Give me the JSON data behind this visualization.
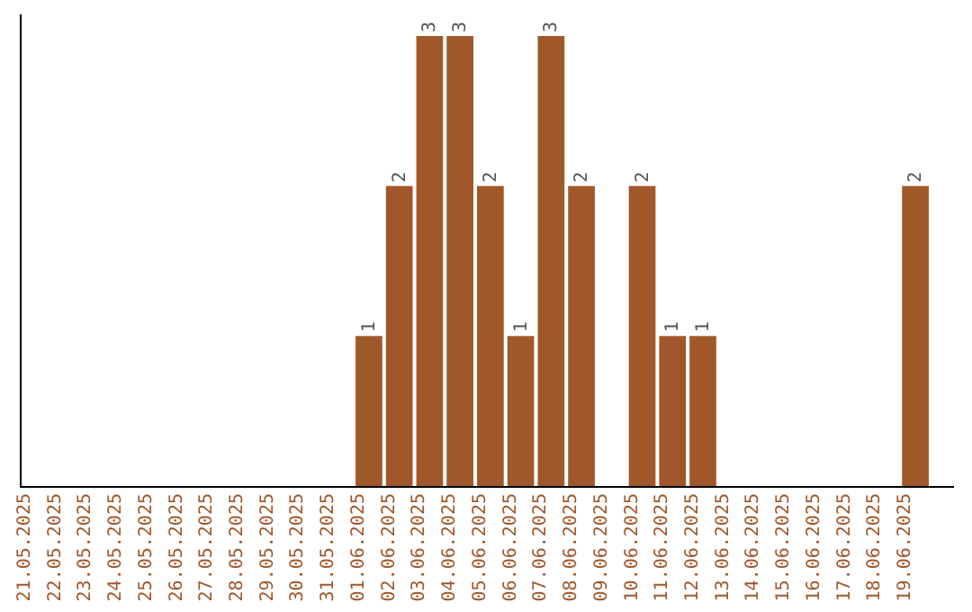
{
  "chart_data": {
    "type": "bar",
    "categories": [
      "21.05.2025",
      "22.05.2025",
      "23.05.2025",
      "24.05.2025",
      "25.05.2025",
      "26.05.2025",
      "27.05.2025",
      "28.05.2025",
      "29.05.2025",
      "30.05.2025",
      "31.05.2025",
      "01.06.2025",
      "02.06.2025",
      "03.06.2025",
      "04.06.2025",
      "05.06.2025",
      "06.06.2025",
      "07.06.2025",
      "08.06.2025",
      "09.06.2025",
      "10.06.2025",
      "11.06.2025",
      "12.06.2025",
      "13.06.2025",
      "14.06.2025",
      "15.06.2025",
      "16.06.2025",
      "17.06.2025",
      "18.06.2025",
      "19.06.2025"
    ],
    "values": [
      0,
      0,
      0,
      0,
      0,
      0,
      0,
      0,
      0,
      0,
      0,
      1,
      2,
      3,
      3,
      2,
      1,
      3,
      2,
      0,
      2,
      1,
      1,
      0,
      0,
      0,
      0,
      0,
      0,
      2
    ],
    "value_labels": [
      null,
      null,
      null,
      null,
      null,
      null,
      null,
      null,
      null,
      null,
      null,
      "1",
      "2",
      "3",
      "3",
      "2",
      "1",
      "3",
      "2",
      null,
      "2",
      "1",
      "1",
      null,
      null,
      null,
      null,
      null,
      null,
      "2"
    ],
    "color": "#a0582a",
    "grid": false
  }
}
